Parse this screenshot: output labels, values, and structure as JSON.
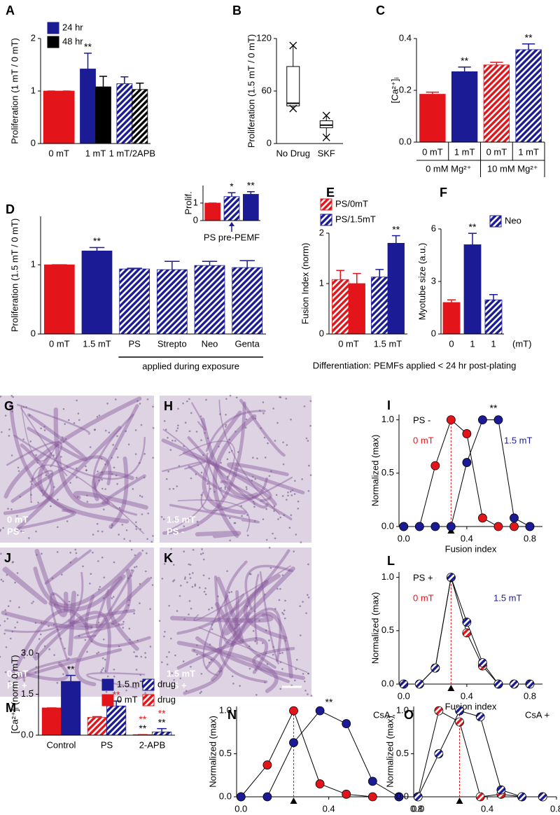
{
  "chart_data": [
    {
      "panel": "A",
      "type": "bar",
      "ylabel": "Proliferation (1 mT / 0 mT)",
      "categories": [
        "0 mT",
        "1 mT",
        "1 mT/2APB"
      ],
      "series": [
        {
          "values": [
            1,
            1.42,
            1.14
          ],
          "errors": [
            0,
            0.3,
            0.13
          ],
          "colors": [
            "#e3151b",
            "#1b1b95",
            "#1b1b95"
          ],
          "hatched": [
            false,
            false,
            true
          ]
        },
        {
          "values": [
            1,
            1.08,
            1.03
          ],
          "errors": [
            0,
            0.2,
            0.12
          ],
          "colors": [
            "#e3151b",
            "#000000",
            "#000000"
          ],
          "hatched": [
            false,
            false,
            true
          ]
        }
      ],
      "legend": [
        {
          "label": "24 hr",
          "color": "#1b1b95"
        },
        {
          "label": "48 hr",
          "color": "#000000"
        }
      ],
      "annotations": [
        {
          "text": "**",
          "series": 0,
          "index": 1
        }
      ],
      "ylim": [
        0,
        2
      ],
      "yticks": [
        0,
        1,
        2
      ]
    },
    {
      "panel": "B",
      "type": "box",
      "ylabel": "Proliferation (1.5 mT / 0 mT)",
      "categories": [
        "No Drug",
        "SKF"
      ],
      "min": [
        40,
        7
      ],
      "q1": [
        43,
        18
      ],
      "median": [
        46,
        21
      ],
      "q3": [
        88,
        26
      ],
      "max": [
        112,
        32
      ],
      "ylim": [
        0,
        120
      ],
      "yticks": [
        0,
        60,
        120
      ]
    },
    {
      "panel": "C",
      "type": "bar",
      "ylabel": "[Ca²⁺]ᵢ",
      "categories": [
        "0 mT",
        "1 mT",
        "0 mT",
        "1 mT"
      ],
      "groups": [
        {
          "label": "0 mM Mg²⁺",
          "span": [
            0,
            1
          ]
        },
        {
          "label": "10 mM Mg²⁺",
          "span": [
            2,
            3
          ]
        }
      ],
      "series": [
        {
          "values": [
            0.185,
            0.272,
            0.298,
            0.357
          ],
          "errors": [
            0.008,
            0.018,
            0.01,
            0.022
          ],
          "colors": [
            "#e3151b",
            "#1b1b95",
            "#e3151b",
            "#1b1b95"
          ],
          "hatched": [
            false,
            false,
            true,
            true
          ]
        }
      ],
      "annotations": [
        {
          "text": "**",
          "series": 0,
          "index": 1
        },
        {
          "text": "**",
          "series": 0,
          "index": 3
        }
      ],
      "ylim": [
        0,
        0.4
      ],
      "yticks": [
        {
          "value": 0,
          "label": "0.0"
        },
        0.2,
        0.4
      ]
    },
    {
      "panel": "D",
      "type": "bar",
      "ylabel": "Proliferation (1.5 mT / 0 mT)",
      "categories": [
        "0 mT",
        "1.5 mT",
        "PS",
        "Strepto",
        "Neo",
        "Genta"
      ],
      "series": [
        {
          "values": [
            1,
            1.2,
            0.94,
            0.93,
            0.99,
            0.96
          ],
          "errors": [
            0,
            0.05,
            0.01,
            0.12,
            0.06,
            0.1
          ],
          "colors": [
            "#e3151b",
            "#1b1b95",
            "#1b1b95",
            "#1b1b95",
            "#1b1b95",
            "#1b1b95"
          ],
          "hatched": [
            false,
            false,
            true,
            true,
            true,
            true
          ]
        }
      ],
      "bracket": {
        "label": "applied during exposure",
        "span": [
          2,
          5
        ]
      },
      "annotations": [
        {
          "text": "**",
          "series": 0,
          "index": 1
        }
      ],
      "ylim": [
        0,
        1.7
      ],
      "yticks": [
        0,
        1
      ]
    },
    {
      "type": "bar",
      "ylabel": "Prolif.",
      "categories": [
        null,
        null,
        null
      ],
      "series": [
        {
          "values": [
            1,
            1.37,
            1.5
          ],
          "errors": [
            0,
            0.22,
            0.15
          ],
          "colors": [
            "#e3151b",
            "#1b1b95",
            "#1b1b95"
          ],
          "hatched": [
            false,
            true,
            false
          ]
        }
      ],
      "caption": "PS pre-PEMF",
      "arrow_index": 1,
      "annotations": [
        {
          "text": "*",
          "series": 0,
          "index": 1
        },
        {
          "text": "**",
          "series": 0,
          "index": 2
        }
      ],
      "ylim": [
        0,
        2
      ],
      "yticks": [
        0,
        1
      ]
    },
    {
      "panel": "E",
      "type": "bar",
      "ylabel": "Fusion Index (norm)",
      "categories": [
        "0 mT",
        "1.5 mT"
      ],
      "series": [
        {
          "values": [
            1.08,
            1.13
          ],
          "errors": [
            0.18,
            0.15
          ],
          "colors": [
            "#e3151b",
            "#1b1b95"
          ],
          "hatched": [
            true,
            true
          ]
        },
        {
          "values": [
            1.0,
            1.8
          ],
          "errors": [
            0.2,
            0.15
          ],
          "colors": [
            "#e3151b",
            "#1b1b95"
          ],
          "hatched": [
            false,
            false
          ]
        }
      ],
      "legend": [
        {
          "label": "PS/0mT",
          "color": "#e3151b",
          "hatched": true
        },
        {
          "label": "PS/1.5mT",
          "color": "#1b1b95",
          "hatched": true
        }
      ],
      "annotations": [
        {
          "text": "**",
          "series": 1,
          "index": 1
        }
      ],
      "ylim": [
        0,
        2
      ],
      "yticks": [
        0,
        1,
        2
      ]
    },
    {
      "panel": "F",
      "type": "bar",
      "ylabel": "Myotube size (a.u.)",
      "categories": [
        "0",
        "1",
        "1"
      ],
      "x_unit": "(mT)",
      "series": [
        {
          "values": [
            1.8,
            5.1,
            1.95
          ],
          "errors": [
            0.15,
            0.65,
            0.3
          ],
          "colors": [
            "#e3151b",
            "#1b1b95",
            "#1b1b95"
          ],
          "hatched": [
            false,
            false,
            true
          ]
        }
      ],
      "legend": [
        {
          "label": "Neo",
          "color": "#1b1b95",
          "hatched": true
        }
      ],
      "annotations": [
        {
          "text": "**",
          "series": 0,
          "index": 1
        }
      ],
      "ylim": [
        0,
        6
      ],
      "yticks": [
        0,
        3,
        6
      ]
    },
    {
      "panel": "I",
      "type": "line",
      "ylabel": "Normalized (max)",
      "xlabel": "Fusion index",
      "label": "PS -",
      "x": [
        0,
        0.1,
        0.2,
        0.3,
        0.4,
        0.5,
        0.6,
        0.7,
        0.8
      ],
      "series": [
        {
          "name": "0 mT",
          "color": "#e3151b",
          "hatched": false,
          "values": [
            0,
            0,
            0.57,
            1,
            0.87,
            0.08,
            0,
            0,
            0
          ]
        },
        {
          "name": "1.5 mT",
          "color": "#1b1b95",
          "hatched": false,
          "values": [
            0,
            0,
            0,
            0,
            0.6,
            1,
            1,
            0.08,
            0
          ]
        }
      ],
      "reference_x": 0.3,
      "annotations": [
        {
          "text": "**"
        }
      ],
      "xlim": [
        -0.03,
        0.88
      ],
      "xticks": [
        {
          "value": 0,
          "label": "0.0"
        },
        0.4,
        0.8
      ],
      "ylim": [
        0,
        1.05
      ],
      "yticks": [
        {
          "value": 0,
          "label": "0.0"
        },
        0.5,
        {
          "value": 1,
          "label": "1.0"
        }
      ]
    },
    {
      "panel": "L",
      "type": "line",
      "ylabel": "Normalized (max)",
      "xlabel": "Fusion index",
      "label": "PS +",
      "x": [
        0,
        0.1,
        0.2,
        0.3,
        0.4,
        0.5,
        0.6,
        0.7,
        0.8
      ],
      "series": [
        {
          "name": "0 mT",
          "color": "#e3151b",
          "hatched": true,
          "values": [
            0,
            0,
            0.15,
            1,
            0.48,
            0.17,
            0,
            0,
            0
          ]
        },
        {
          "name": "1.5 mT",
          "color": "#1b1b95",
          "hatched": true,
          "values": [
            0,
            0,
            0.15,
            1,
            0.58,
            0.2,
            0,
            0,
            0
          ]
        }
      ],
      "reference_x": 0.3,
      "xlim": [
        -0.03,
        0.88
      ],
      "xticks": [
        {
          "value": 0,
          "label": "0.0"
        },
        0.4,
        0.8
      ],
      "ylim": [
        0,
        1.05
      ],
      "yticks": [
        {
          "value": 0,
          "label": "0.0"
        },
        0.5,
        {
          "value": 1,
          "label": "1.0"
        }
      ]
    },
    {
      "panel": "M",
      "type": "bar",
      "ylabel": "[Ca²⁺]ᵢ (norm 0 mT)",
      "categories": [
        "Control",
        "PS",
        "2-APB"
      ],
      "series": [
        {
          "values": [
            1,
            0.65,
            0.02
          ],
          "errors": [
            0,
            0.03,
            0
          ],
          "colors": [
            "#e3151b",
            "#e3151b",
            "#e3151b"
          ],
          "hatched": [
            false,
            true,
            true
          ]
        },
        {
          "values": [
            1.97,
            1.07,
            0.12
          ],
          "errors": [
            0.22,
            0.18,
            0.12
          ],
          "colors": [
            "#1b1b95",
            "#1b1b95",
            "#1b1b95"
          ],
          "hatched": [
            false,
            true,
            true
          ]
        }
      ],
      "legend": [
        {
          "label": "1.5 mT",
          "color": "#1b1b95"
        },
        {
          "label": "drug",
          "color": "#1b1b95",
          "hatched": true
        },
        {
          "label": "0 mT",
          "color": "#e3151b"
        },
        {
          "label": "drug",
          "color": "#e3151b",
          "hatched": true
        }
      ],
      "annotations": [
        {
          "text": "**",
          "series": 1,
          "index": 0
        },
        {
          "text": "**",
          "series": 1,
          "index": 1,
          "color": "#e3151b"
        },
        {
          "text": "**",
          "series": 0,
          "index": 2
        },
        {
          "text": "**",
          "series": 0,
          "index": 2,
          "color": "#e3151b"
        },
        {
          "text": "**",
          "series": 1,
          "index": 2
        },
        {
          "text": "**",
          "series": 1,
          "index": 2,
          "color": "#e3151b"
        }
      ],
      "ylim": [
        0,
        3
      ],
      "yticks": [
        {
          "value": 0,
          "label": "0.0"
        },
        1.5,
        {
          "value": 3,
          "label": "3.0"
        }
      ]
    },
    {
      "panel": "N",
      "type": "line",
      "ylabel": "Normalized (max)",
      "label": "CsA -",
      "x": [
        0,
        0.12,
        0.24,
        0.36,
        0.48,
        0.6,
        0.72
      ],
      "series": [
        {
          "color": "#e3151b",
          "hatched": false,
          "values": [
            0,
            0.37,
            1,
            0.15,
            0.03,
            0,
            0
          ]
        },
        {
          "color": "#1b1b95",
          "hatched": false,
          "values": [
            0,
            0,
            0.63,
            1,
            0.85,
            0.18,
            0
          ]
        }
      ],
      "reference_x": 0.24,
      "annotations": [
        {
          "text": "**"
        }
      ],
      "xlim": [
        -0.02,
        0.8
      ],
      "xticks": [
        {
          "value": 0,
          "label": "0.0"
        },
        0.4,
        0.8
      ],
      "ylim": [
        0,
        1.05
      ],
      "yticks": [
        {
          "value": 0,
          "label": "0.0"
        },
        0.5,
        {
          "value": 1,
          "label": "1.0"
        }
      ]
    },
    {
      "panel": "O",
      "type": "line",
      "ylabel": "Normalized (max)",
      "label": "CsA +",
      "x": [
        0,
        0.12,
        0.24,
        0.36,
        0.48,
        0.6,
        0.72
      ],
      "series": [
        {
          "color": "#e3151b",
          "hatched": true,
          "values": [
            0,
            1,
            0.87,
            0,
            0.03,
            0,
            0
          ]
        },
        {
          "color": "#1b1b95",
          "hatched": true,
          "values": [
            0,
            0.5,
            1,
            0.93,
            0.08,
            0,
            0
          ]
        }
      ],
      "reference_x": 0.24,
      "xlim": [
        -0.025,
        0.8
      ],
      "xticks": [
        {
          "value": 0,
          "label": "0.0"
        },
        0.4,
        0.8
      ],
      "ylim": [
        0,
        1.05
      ],
      "yticks": [
        {
          "value": 0,
          "label": "0.0"
        },
        0.5,
        {
          "value": 1,
          "label": "1.0"
        }
      ]
    }
  ],
  "figure_caption": "Differentiation: PEMFs applied < 24 hr post-plating",
  "micrographs": [
    {
      "panel": "G",
      "labels": [
        "0 mT",
        "PS -"
      ]
    },
    {
      "panel": "H",
      "labels": [
        "1.5 mT",
        "PS -"
      ]
    },
    {
      "panel": "J",
      "labels": [
        "0 mT",
        "PS +"
      ]
    },
    {
      "panel": "K",
      "labels": [
        "1.5 mT",
        "PS +"
      ]
    }
  ]
}
